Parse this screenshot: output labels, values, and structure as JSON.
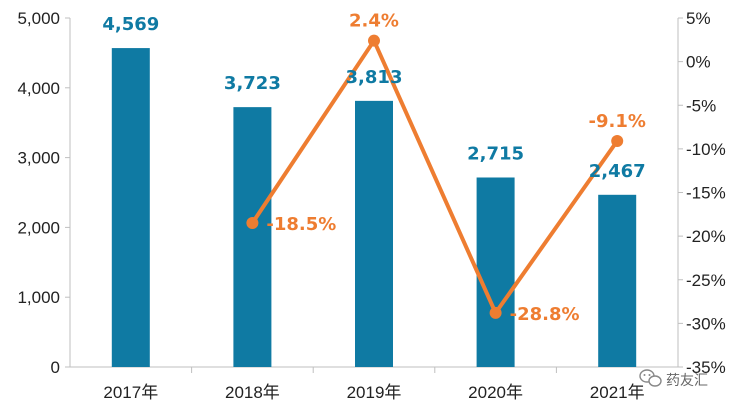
{
  "chart_data": {
    "type": "bar",
    "categories": [
      "2017年",
      "2018年",
      "2019年",
      "2020年",
      "2021年"
    ],
    "series": [
      {
        "type": "bar",
        "axis": "left",
        "values": [
          4569,
          3723,
          3813,
          2715,
          2467
        ],
        "labels": [
          "4,569",
          "3,723",
          "3,813",
          "2,715",
          "2,467"
        ],
        "color": "#0f7aa3"
      },
      {
        "type": "line",
        "axis": "right",
        "values": [
          null,
          -18.5,
          2.4,
          -28.8,
          -9.1
        ],
        "labels": [
          "",
          "-18.5%",
          "2.4%",
          "-28.8%",
          "-9.1%"
        ],
        "color": "#ee7d31"
      }
    ],
    "y_left": {
      "min": 0,
      "max": 5000,
      "ticks": [
        0,
        1000,
        2000,
        3000,
        4000,
        5000
      ],
      "tick_labels": [
        "0",
        "1,000",
        "2,000",
        "3,000",
        "4,000",
        "5,000"
      ]
    },
    "y_right": {
      "min": -35,
      "max": 5,
      "ticks": [
        5,
        0,
        -5,
        -10,
        -15,
        -20,
        -25,
        -30,
        -35
      ],
      "tick_labels": [
        "5%",
        "0%",
        "-5%",
        "-10%",
        "-15%",
        "-20%",
        "-25%",
        "-30%",
        "-35%"
      ]
    },
    "grid": false,
    "legend": "none",
    "watermark": "药友汇",
    "watermark_icon": "wechat-icon"
  }
}
